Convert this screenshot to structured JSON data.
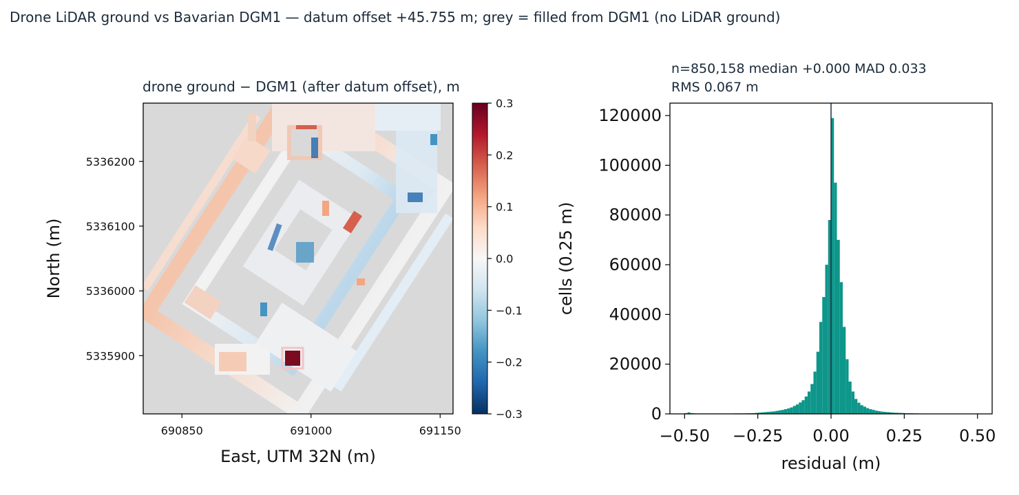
{
  "figure": {
    "suptitle": "Drone LiDAR ground vs Bavarian DGM1 — datum offset +45.755 m; grey = filled from DGM1 (no LiDAR ground)"
  },
  "colors": {
    "no_data_grey": "#d9d9d9",
    "histogram_teal": "#0e968a",
    "colormap": "RdBu_r",
    "diverging_stops": [
      "#053061",
      "#2166ac",
      "#4393c3",
      "#92c5de",
      "#d1e5f0",
      "#f7f7f7",
      "#fddbc7",
      "#f4a582",
      "#d6604d",
      "#b2182b",
      "#67001f"
    ]
  },
  "chart_data": [
    {
      "type": "heatmap",
      "title": "drone ground − DGM1 (after datum offset), m",
      "xlabel": "East, UTM 32N (m)",
      "ylabel": "North (m)",
      "xlim": [
        690805,
        691165
      ],
      "ylim": [
        5335810,
        5336290
      ],
      "xticks": [
        690850,
        691000,
        691150
      ],
      "yticks": [
        5335900,
        5336000,
        5336100,
        5336200
      ],
      "xtick_labels": [
        "690850",
        "691000",
        "691150"
      ],
      "ytick_labels": [
        "5335900",
        "5336000",
        "5336100",
        "5336200"
      ],
      "colorbar": {
        "range": [
          -0.3,
          0.3
        ],
        "ticks": [
          -0.3,
          -0.2,
          -0.1,
          0.0,
          0.1,
          0.2,
          0.3
        ],
        "tick_labels": [
          "−0.3",
          "−0.2",
          "−0.1",
          "0.0",
          "0.1",
          "0.2",
          "0.3"
        ]
      }
    },
    {
      "type": "bar",
      "subtitle_lines": [
        "n=850,158  median +0.000  MAD 0.033",
        "RMS 0.067 m"
      ],
      "xlabel": "residual (m)",
      "ylabel": "cells (0.25 m)",
      "xlim": [
        -0.55,
        0.55
      ],
      "ylim": [
        0,
        125000
      ],
      "xticks": [
        -0.5,
        -0.25,
        0.0,
        0.25,
        0.5
      ],
      "xtick_labels": [
        "−0.50",
        "−0.25",
        "0.00",
        "0.25",
        "0.50"
      ],
      "yticks": [
        0,
        20000,
        40000,
        60000,
        80000,
        100000,
        120000
      ],
      "ytick_labels": [
        "0",
        "20000",
        "40000",
        "60000",
        "80000",
        "100000",
        "120000"
      ],
      "bin_width": 0.01,
      "bin_left_edges": [
        -0.5,
        -0.49,
        -0.48,
        -0.47,
        -0.46,
        -0.45,
        -0.44,
        -0.43,
        -0.42,
        -0.41,
        -0.4,
        -0.39,
        -0.38,
        -0.37,
        -0.36,
        -0.35,
        -0.34,
        -0.33,
        -0.32,
        -0.31,
        -0.3,
        -0.29,
        -0.28,
        -0.27,
        -0.26,
        -0.25,
        -0.24,
        -0.23,
        -0.22,
        -0.21,
        -0.2,
        -0.19,
        -0.18,
        -0.17,
        -0.16,
        -0.15,
        -0.14,
        -0.13,
        -0.12,
        -0.11,
        -0.1,
        -0.09,
        -0.08,
        -0.07,
        -0.06,
        -0.05,
        -0.04,
        -0.03,
        -0.02,
        -0.01,
        0.0,
        0.01,
        0.02,
        0.03,
        0.04,
        0.05,
        0.06,
        0.07,
        0.08,
        0.09,
        0.1,
        0.11,
        0.12,
        0.13,
        0.14,
        0.15,
        0.16,
        0.17,
        0.18,
        0.19,
        0.2,
        0.21,
        0.22,
        0.23,
        0.24,
        0.25,
        0.26,
        0.27,
        0.28,
        0.29,
        0.3,
        0.31,
        0.32,
        0.33,
        0.34,
        0.35,
        0.36,
        0.37,
        0.38,
        0.39,
        0.4,
        0.41,
        0.42,
        0.43,
        0.44,
        0.45,
        0.46,
        0.47,
        0.48,
        0.49
      ],
      "values": [
        300,
        600,
        300,
        200,
        150,
        150,
        150,
        150,
        150,
        150,
        150,
        150,
        150,
        150,
        150,
        150,
        150,
        200,
        200,
        200,
        200,
        250,
        250,
        300,
        400,
        500,
        600,
        700,
        800,
        900,
        1000,
        1200,
        1400,
        1600,
        1900,
        2200,
        2600,
        3200,
        3800,
        4600,
        5500,
        7000,
        9000,
        12000,
        17000,
        25000,
        37000,
        47000,
        60000,
        78000,
        119000,
        93000,
        70000,
        53000,
        35000,
        22000,
        13000,
        9000,
        6000,
        4500,
        3500,
        2900,
        2300,
        1900,
        1600,
        1300,
        1100,
        900,
        800,
        700,
        600,
        500,
        450,
        400,
        350,
        300,
        250,
        250,
        200,
        200,
        150,
        150,
        120,
        120,
        100,
        100,
        80,
        80,
        80,
        60,
        60,
        60,
        60,
        50,
        50,
        50,
        50,
        50,
        50,
        50
      ],
      "vertical_line_at": 0.0
    }
  ]
}
